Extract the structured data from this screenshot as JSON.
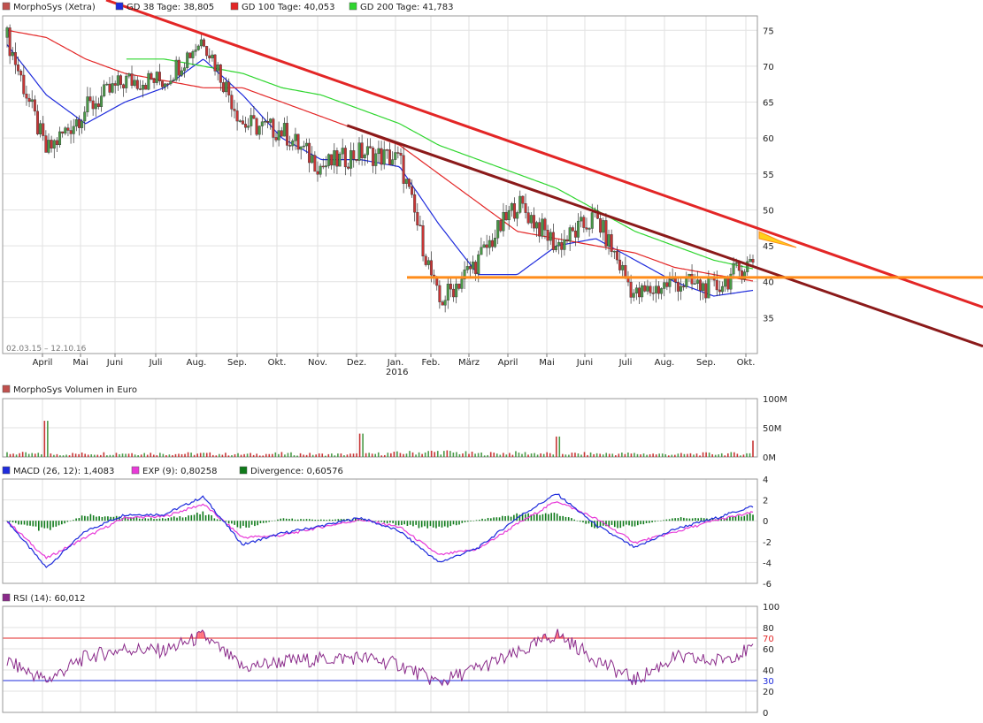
{
  "colors": {
    "price_box": "#c0504d",
    "gd38": "#1e2bdc",
    "gd100": "#e32626",
    "gd200": "#2fd62f",
    "up_candle": "#4a9a48",
    "down_candle": "#c73535",
    "resistance_line": "#e32626",
    "resistance_line_dark": "#8b1a1a",
    "support_line": "#ff8c1a",
    "volume_box": "#c0504d",
    "macd": "#1e2bdc",
    "exp": "#e83ad8",
    "divergence": "#0f7a1a",
    "rsi": "#8a2a8a",
    "rsi_upper": "#e32626",
    "rsi_lower": "#1e2bdc"
  },
  "price_panel": {
    "legend": [
      {
        "label": "MorphoSys (Xetra)",
        "color": "#c0504d"
      },
      {
        "label": "GD 38 Tage: 38,805",
        "color": "#1e2bdc"
      },
      {
        "label": "GD 100 Tage: 40,053",
        "color": "#e32626"
      },
      {
        "label": "GD 200 Tage: 41,783",
        "color": "#2fd62f"
      }
    ],
    "date_range": "02.03.15 – 12.10.16",
    "y_ticks": [
      "75",
      "70",
      "65",
      "60",
      "55",
      "50",
      "45",
      "40",
      "35"
    ],
    "x_months": [
      "April",
      "Mai",
      "Juni",
      "Juli",
      "Aug.",
      "Sep.",
      "Okt.",
      "Nov.",
      "Dez.",
      "Jan.",
      "Feb.",
      "März",
      "April",
      "Mai",
      "Juni",
      "Juli",
      "Aug.",
      "Sep.",
      "Okt."
    ],
    "year_label": "2016"
  },
  "volume_panel": {
    "legend": "MorphoSys Volumen in Euro",
    "y_ticks": [
      "100M",
      "50M",
      "0M"
    ]
  },
  "macd_panel": {
    "legend": [
      {
        "label": "MACD (26, 12): 1,4083",
        "color": "#1e2bdc"
      },
      {
        "label": "EXP (9): 0,80258",
        "color": "#e83ad8"
      },
      {
        "label": "Divergence: 0,60576",
        "color": "#0f7a1a"
      }
    ],
    "y_ticks": [
      "4",
      "2",
      "0",
      "-2",
      "-4",
      "-6"
    ]
  },
  "rsi_panel": {
    "legend": "RSI (14): 60,012",
    "y_ticks": [
      "100",
      "80",
      "70",
      "60",
      "40",
      "30",
      "20",
      "0"
    ]
  },
  "chart_data": [
    {
      "type": "line",
      "subtype": "candlestick_with_moving_averages",
      "x": [
        "2015-03",
        "2015-04",
        "2015-05",
        "2015-06",
        "2015-07",
        "2015-08",
        "2015-09",
        "2015-10",
        "2015-11",
        "2015-12",
        "2016-01",
        "2016-02",
        "2016-03",
        "2016-04",
        "2016-05",
        "2016-06",
        "2016-07",
        "2016-08",
        "2016-09",
        "2016-10"
      ],
      "series": [
        {
          "name": "MorphoSys (Xetra)",
          "values": [
            74,
            58,
            64,
            68,
            68,
            74,
            62,
            61,
            56,
            58,
            57,
            37,
            43,
            51,
            45,
            49,
            38,
            40,
            39,
            43
          ]
        },
        {
          "name": "GD 38 Tage: 38,805",
          "values": [
            73,
            66,
            62,
            65,
            67,
            71,
            66,
            60,
            57,
            57,
            56,
            48,
            41,
            41,
            45,
            46,
            43,
            40,
            38,
            38.8
          ]
        },
        {
          "name": "GD 100 Tage: 40,053",
          "values": [
            75,
            74,
            71,
            69,
            68,
            67,
            67,
            65,
            63,
            61,
            59,
            55,
            51,
            47,
            46,
            45,
            44,
            42,
            41,
            40.1
          ]
        },
        {
          "name": "GD 200 Tage: 41,783",
          "values": [
            null,
            null,
            null,
            null,
            71,
            70,
            69,
            67,
            66,
            64,
            62,
            59,
            57,
            55,
            53,
            50,
            47,
            45,
            43,
            41.8
          ]
        }
      ],
      "trendlines": [
        {
          "from": [
            "2015-06",
            79
          ],
          "to": [
            "2016-10",
            33
          ]
        },
        {
          "from": [
            "2015-12",
            62
          ],
          "to": [
            "2016-10",
            32
          ]
        },
        {
          "horizontal": 40.6,
          "from_x": "2016-02",
          "to_x": "2016-10"
        }
      ],
      "ylim": [
        30,
        77
      ]
    },
    {
      "type": "bar",
      "subtype": "volume",
      "values_M": [
        6,
        4,
        5,
        6,
        5,
        5,
        4,
        5,
        4,
        4,
        6,
        8,
        5,
        6,
        5,
        5,
        5,
        4,
        5,
        5
      ],
      "peaks_M": [
        {
          "x": "2015-04",
          "value": 62
        },
        {
          "x": "2015-12",
          "value": 40
        },
        {
          "x": "2016-05",
          "value": 35
        },
        {
          "x": "2016-10",
          "value": 28
        }
      ],
      "ylim": [
        0,
        100
      ]
    },
    {
      "type": "line",
      "subtype": "macd",
      "x": [
        "2015-03",
        "2015-04",
        "2015-05",
        "2015-06",
        "2015-07",
        "2015-08",
        "2015-09",
        "2015-10",
        "2015-11",
        "2015-12",
        "2016-01",
        "2016-02",
        "2016-03",
        "2016-04",
        "2016-05",
        "2016-06",
        "2016-07",
        "2016-08",
        "2016-09",
        "2016-10"
      ],
      "series": [
        {
          "name": "MACD (26, 12): 1,4083",
          "values": [
            0,
            -4.5,
            -1,
            0.6,
            0.6,
            2.3,
            -2.3,
            -1.2,
            -0.5,
            0.3,
            -1,
            -4,
            -2.6,
            0.3,
            2.6,
            -0.4,
            -2.6,
            -0.8,
            0.2,
            1.4
          ]
        },
        {
          "name": "EXP (9): 0,80258",
          "values": [
            0,
            -3.6,
            -1.6,
            0.3,
            0.4,
            1.6,
            -1.6,
            -1.4,
            -0.6,
            0.1,
            -0.6,
            -3.3,
            -2.7,
            -0.3,
            1.9,
            0.2,
            -2.1,
            -1.1,
            0,
            0.8
          ]
        },
        {
          "name": "Divergence: 0,60576",
          "values": [
            0,
            -1,
            0.6,
            0.3,
            0.2,
            0.7,
            -0.7,
            0.2,
            0.1,
            0.2,
            -0.4,
            -0.7,
            0.1,
            0.6,
            0.7,
            -0.6,
            -0.5,
            0.3,
            0.2,
            0.6
          ]
        }
      ],
      "ylim": [
        -6,
        4
      ]
    },
    {
      "type": "line",
      "subtype": "rsi",
      "x": [
        "2015-03",
        "2015-04",
        "2015-05",
        "2015-06",
        "2015-07",
        "2015-08",
        "2015-09",
        "2015-10",
        "2015-11",
        "2015-12",
        "2016-01",
        "2016-02",
        "2016-03",
        "2016-04",
        "2016-05",
        "2016-06",
        "2016-07",
        "2016-08",
        "2016-09",
        "2016-10"
      ],
      "series": [
        {
          "name": "RSI (14): 60,012",
          "values": [
            48,
            30,
            52,
            60,
            58,
            72,
            42,
            48,
            50,
            52,
            45,
            28,
            42,
            55,
            74,
            50,
            30,
            52,
            48,
            60
          ]
        }
      ],
      "reference_lines": [
        70,
        30
      ],
      "ylim": [
        0,
        100
      ]
    }
  ]
}
